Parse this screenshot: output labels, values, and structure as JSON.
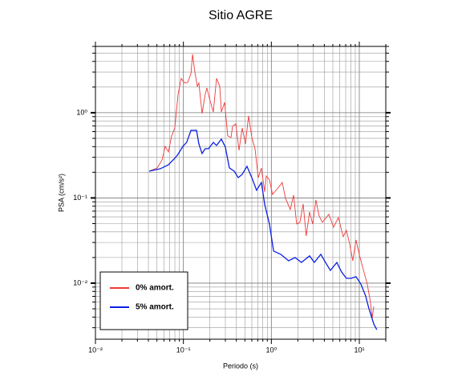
{
  "chart_data": {
    "type": "line",
    "title": "Sitio AGRE",
    "xlabel": "Periodo (s)",
    "ylabel": "PSA (cm/s²)",
    "xscale": "log",
    "yscale": "log",
    "grid": true,
    "legend": "lower left",
    "xlim": [
      0.01,
      20
    ],
    "ylim": [
      0.0022,
      6
    ],
    "xticks": [
      {
        "value": 0.01,
        "label": "10⁻²"
      },
      {
        "value": 0.1,
        "label": "10⁻¹"
      },
      {
        "value": 1,
        "label": "10⁰"
      },
      {
        "value": 10,
        "label": "10¹"
      }
    ],
    "yticks": [
      {
        "value": 0.01,
        "label": "10⁻²"
      },
      {
        "value": 0.1,
        "label": "10⁻¹"
      },
      {
        "value": 1,
        "label": "10⁰"
      }
    ],
    "series": [
      {
        "name": "0% amort.",
        "color": "#ee3a3a",
        "x": [
          0.0408,
          0.0504,
          0.0571,
          0.0621,
          0.0676,
          0.0735,
          0.0798,
          0.0869,
          0.0944,
          0.103,
          0.112,
          0.122,
          0.127,
          0.135,
          0.144,
          0.15,
          0.163,
          0.177,
          0.185,
          0.201,
          0.219,
          0.238,
          0.259,
          0.27,
          0.294,
          0.319,
          0.348,
          0.362,
          0.394,
          0.429,
          0.466,
          0.507,
          0.551,
          0.6,
          0.652,
          0.71,
          0.771,
          0.838,
          0.875,
          0.951,
          1.03,
          1.17,
          1.33,
          1.45,
          1.64,
          1.79,
          1.94,
          2.11,
          2.3,
          2.49,
          2.72,
          2.95,
          3.21,
          3.49,
          3.8,
          4.5,
          5.09,
          5.78,
          6.56,
          7.13,
          7.76,
          8.43,
          9.18,
          9.98,
          11.3,
          12.3,
          13.4,
          14.0,
          14.6
        ],
        "values": [
          0.206,
          0.225,
          0.279,
          0.403,
          0.347,
          0.535,
          0.663,
          1.64,
          2.53,
          2.23,
          2.27,
          2.88,
          4.85,
          3.01,
          2.04,
          2.23,
          0.979,
          1.64,
          1.95,
          1.38,
          1.02,
          2.53,
          2.04,
          1.02,
          1.32,
          0.535,
          0.512,
          0.692,
          0.739,
          0.362,
          0.663,
          0.43,
          0.917,
          0.512,
          0.378,
          0.173,
          0.225,
          0.118,
          0.181,
          0.163,
          0.11,
          0.128,
          0.152,
          0.0989,
          0.0731,
          0.108,
          0.0495,
          0.0517,
          0.0851,
          0.0358,
          0.0685,
          0.0495,
          0.0947,
          0.0615,
          0.0517,
          0.0642,
          0.0454,
          0.0589,
          0.0351,
          0.0417,
          0.0289,
          0.0183,
          0.0321,
          0.0218,
          0.0135,
          0.00979,
          0.00595,
          0.00386,
          0.00534
        ]
      },
      {
        "name": "5% amort.",
        "color": "#0a1fe0",
        "x": [
          0.0408,
          0.0547,
          0.0676,
          0.0798,
          0.0869,
          0.0987,
          0.109,
          0.122,
          0.129,
          0.141,
          0.15,
          0.163,
          0.177,
          0.193,
          0.219,
          0.238,
          0.27,
          0.3,
          0.333,
          0.378,
          0.42,
          0.466,
          0.528,
          0.6,
          0.679,
          0.771,
          0.838,
          0.951,
          1.06,
          1.28,
          1.57,
          1.86,
          2.2,
          2.72,
          3.08,
          3.65,
          4.13,
          4.69,
          5.55,
          6.29,
          7.13,
          8.09,
          9.18,
          10.4,
          11.8,
          12.8,
          14.6,
          15.8
        ],
        "values": [
          0.206,
          0.22,
          0.245,
          0.292,
          0.325,
          0.403,
          0.449,
          0.621,
          0.621,
          0.621,
          0.43,
          0.332,
          0.378,
          0.378,
          0.449,
          0.412,
          0.49,
          0.395,
          0.225,
          0.206,
          0.173,
          0.189,
          0.235,
          0.173,
          0.123,
          0.152,
          0.0851,
          0.0495,
          0.0238,
          0.0218,
          0.0183,
          0.02,
          0.0175,
          0.0209,
          0.0175,
          0.0218,
          0.0175,
          0.0141,
          0.0175,
          0.0135,
          0.0114,
          0.0114,
          0.0119,
          0.00979,
          0.00708,
          0.00512,
          0.00332,
          0.00285
        ]
      }
    ]
  }
}
